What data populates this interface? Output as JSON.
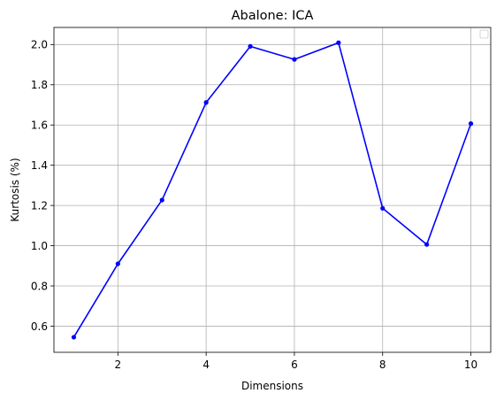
{
  "chart_data": {
    "type": "line",
    "title": "Abalone: ICA",
    "xlabel": "Dimensions",
    "ylabel": "Kurtosis (%)",
    "x": [
      1,
      2,
      3,
      4,
      5,
      6,
      7,
      8,
      9,
      10
    ],
    "series": [
      {
        "values": [
          0.545,
          0.91,
          1.227,
          1.712,
          1.991,
          1.926,
          2.009,
          1.186,
          1.006,
          1.607
        ],
        "color": "#0000ff",
        "marker": "circle"
      }
    ],
    "xlim": [
      0.55,
      10.45
    ],
    "ylim": [
      0.47,
      2.085
    ],
    "xticks": [
      2,
      4,
      6,
      8,
      10
    ],
    "yticks": [
      0.6,
      0.8,
      1.0,
      1.2,
      1.4,
      1.6,
      1.8,
      2.0
    ],
    "xtick_labels": [
      "2",
      "4",
      "6",
      "8",
      "10"
    ],
    "ytick_labels": [
      "0.6",
      "0.8",
      "1.0",
      "1.2",
      "1.4",
      "1.6",
      "1.8",
      "2.0"
    ],
    "grid": true,
    "legend": "top-right (empty box)"
  }
}
